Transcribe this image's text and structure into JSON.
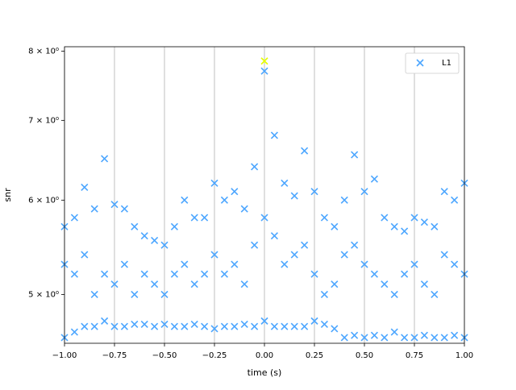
{
  "chart_data": {
    "type": "scatter",
    "xlabel": "time (s)",
    "ylabel": "snr",
    "log_y": true,
    "grid_x": true,
    "xlim": [
      -1,
      1
    ],
    "xticks": [
      {
        "value": -1,
        "label": "−1.00"
      },
      {
        "value": -0.75,
        "label": "−0.75"
      },
      {
        "value": -0.5,
        "label": "−0.50"
      },
      {
        "value": -0.25,
        "label": "−0.25"
      },
      {
        "value": 0,
        "label": "0.00"
      },
      {
        "value": 0.25,
        "label": "0.25"
      },
      {
        "value": 0.5,
        "label": "0.50"
      },
      {
        "value": 0.75,
        "label": "0.75"
      },
      {
        "value": 1,
        "label": "1.00"
      }
    ],
    "ylim": [
      4.55,
      8.07
    ],
    "yticks": [
      {
        "value": 5,
        "label": "5 × 10⁰"
      },
      {
        "value": 6,
        "label": "6 × 10⁰"
      },
      {
        "value": 7,
        "label": "7 × 10⁰"
      },
      {
        "value": 8,
        "label": "8 × 10⁰"
      }
    ],
    "legend_loc": "upper right",
    "series": [
      {
        "name": "L1",
        "color": "#4ca6ff",
        "x": [
          -1.0,
          -0.95,
          -0.9,
          -0.85,
          -0.8,
          -0.75,
          -0.7,
          -0.65,
          -0.6,
          -0.55,
          -0.5,
          -0.45,
          -0.4,
          -0.35,
          -0.3,
          -0.25,
          -0.2,
          -0.15,
          -0.1,
          -0.05,
          0.0,
          0.05,
          0.1,
          0.15,
          0.2,
          0.25,
          0.3,
          0.35,
          0.4,
          0.45,
          0.5,
          0.55,
          0.6,
          0.65,
          0.7,
          0.75,
          0.8,
          0.85,
          0.9,
          0.95,
          1.0,
          -1.0,
          -0.95,
          -0.9,
          -0.85,
          -0.8,
          -0.75,
          -0.7,
          -0.65,
          -0.6,
          -0.55,
          -0.5,
          -0.45,
          -0.4,
          -0.35,
          -0.3,
          -0.25,
          -0.2,
          -0.15,
          -0.1,
          -0.05,
          0.0,
          0.05,
          0.1,
          0.15,
          0.2,
          0.25,
          0.3,
          0.35,
          0.4,
          0.45,
          0.5,
          0.55,
          0.6,
          0.65,
          0.7,
          0.75,
          0.8,
          0.85,
          0.9,
          0.95,
          1.0,
          -1.0,
          -0.95,
          -0.9,
          -0.85,
          -0.8,
          -0.75,
          -0.7,
          -0.65,
          -0.6,
          -0.55,
          -0.5,
          -0.45,
          -0.4,
          -0.35,
          -0.3,
          -0.25,
          -0.2,
          -0.15,
          -0.1,
          -0.05,
          0.0,
          0.05,
          0.1,
          0.15,
          0.2,
          0.25,
          0.3,
          0.35,
          0.4,
          0.45,
          0.5,
          0.55,
          0.6,
          0.65,
          0.7,
          0.75,
          0.8,
          0.85,
          0.9,
          0.95,
          1.0
        ],
        "values": [
          5.7,
          5.8,
          6.15,
          5.9,
          6.5,
          5.95,
          5.9,
          5.7,
          5.6,
          5.55,
          5.5,
          5.7,
          6.0,
          5.8,
          5.8,
          6.2,
          6.0,
          6.1,
          5.9,
          6.4,
          7.7,
          6.8,
          6.2,
          6.05,
          6.6,
          6.1,
          5.8,
          5.7,
          6.0,
          6.55,
          6.1,
          6.25,
          5.8,
          5.7,
          5.65,
          5.8,
          5.75,
          5.7,
          6.1,
          6.0,
          6.2,
          5.3,
          5.2,
          5.4,
          5.0,
          5.2,
          5.1,
          5.3,
          5.0,
          5.2,
          5.1,
          5.0,
          5.2,
          5.3,
          5.1,
          5.2,
          5.4,
          5.2,
          5.3,
          5.1,
          5.5,
          5.8,
          5.6,
          5.3,
          5.4,
          5.5,
          5.2,
          5.0,
          5.1,
          5.4,
          5.5,
          5.3,
          5.2,
          5.1,
          5.0,
          5.2,
          5.3,
          5.1,
          5.0,
          5.4,
          5.3,
          5.2,
          4.6,
          4.65,
          4.7,
          4.7,
          4.75,
          4.7,
          4.7,
          4.72,
          4.72,
          4.7,
          4.72,
          4.7,
          4.7,
          4.72,
          4.7,
          4.68,
          4.7,
          4.7,
          4.72,
          4.7,
          4.75,
          4.7,
          4.7,
          4.7,
          4.7,
          4.75,
          4.72,
          4.68,
          4.6,
          4.62,
          4.6,
          4.62,
          4.6,
          4.65,
          4.6,
          4.6,
          4.62,
          4.6,
          4.6,
          4.62,
          4.6
        ]
      },
      {
        "color": "#e5ff00",
        "x": [
          0.0
        ],
        "values": [
          7.85
        ]
      }
    ]
  }
}
